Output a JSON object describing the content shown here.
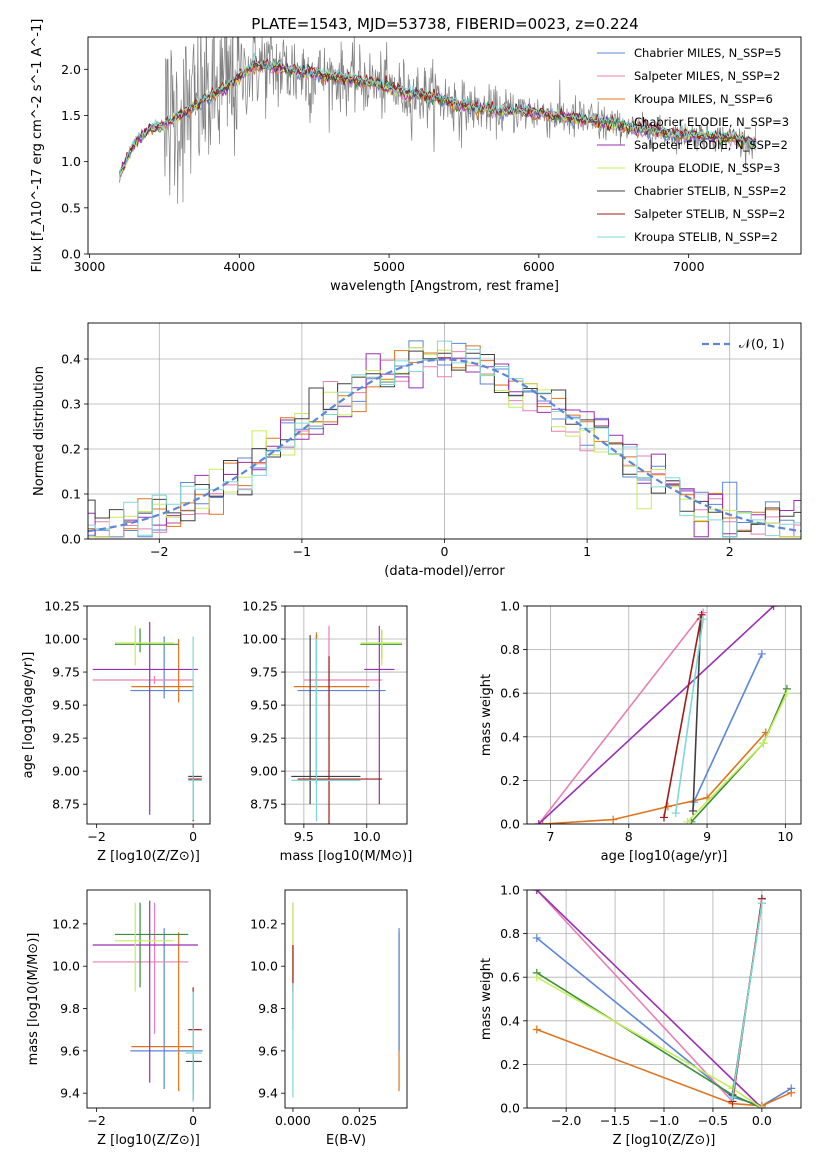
{
  "title": "PLATE=1543, MJD=53738, FIBERID=0023, z=0.224",
  "colors": {
    "c1": "#5b86d9",
    "c2": "#e97fb5",
    "c3": "#e0731e",
    "c4": "#3a8f3a",
    "c5": "#9b2fb3",
    "c6": "#c6ee5b",
    "c7": "#404040",
    "c8": "#a21b1b",
    "c9": "#7fd8d8",
    "data": "#808080"
  },
  "chart_data": [
    {
      "id": "spectrum",
      "type": "line",
      "xlabel": "wavelength [Angstrom, rest frame]",
      "ylabel": "Flux [f_λ10^-17 erg cm^-2 s^-1 A^-1]",
      "xlim": [
        2990,
        7750
      ],
      "ylim": [
        0,
        2.35
      ],
      "xticks": [
        3000,
        4000,
        5000,
        6000,
        7000
      ],
      "yticks": [
        0.0,
        0.5,
        1.0,
        1.5,
        2.0
      ],
      "grid": false,
      "legend_position": "top-right",
      "legend": [
        {
          "label": "Chabrier MILES, N_SSP=5",
          "color_key": "c1"
        },
        {
          "label": "Salpeter MILES, N_SSP=2",
          "color_key": "c2"
        },
        {
          "label": "Kroupa MILES, N_SSP=6",
          "color_key": "c3"
        },
        {
          "label": "Chabrier ELODIE, N_SSP=3",
          "color_key": "c4"
        },
        {
          "label": "Salpeter ELODIE, N_SSP=2",
          "color_key": "c5"
        },
        {
          "label": "Kroupa ELODIE, N_SSP=3",
          "color_key": "c6"
        },
        {
          "label": "Chabrier STELIB, N_SSP=2",
          "color_key": "c7"
        },
        {
          "label": "Salpeter STELIB, N_SSP=2",
          "color_key": "c8"
        },
        {
          "label": "Kroupa STELIB, N_SSP=2",
          "color_key": "c9"
        }
      ],
      "continuum": [
        [
          3200,
          0.85
        ],
        [
          3300,
          1.2
        ],
        [
          3400,
          1.35
        ],
        [
          3500,
          1.4
        ],
        [
          3650,
          1.55
        ],
        [
          3800,
          1.7
        ],
        [
          3950,
          1.85
        ],
        [
          4100,
          2.05
        ],
        [
          4300,
          2.0
        ],
        [
          4500,
          1.95
        ],
        [
          4700,
          1.9
        ],
        [
          4900,
          1.85
        ],
        [
          5100,
          1.75
        ],
        [
          5300,
          1.7
        ],
        [
          5500,
          1.6
        ],
        [
          5700,
          1.55
        ],
        [
          5900,
          1.55
        ],
        [
          6100,
          1.5
        ],
        [
          6300,
          1.45
        ],
        [
          6500,
          1.4
        ],
        [
          6700,
          1.35
        ],
        [
          6900,
          1.3
        ],
        [
          7100,
          1.28
        ],
        [
          7300,
          1.25
        ],
        [
          7450,
          1.2
        ]
      ]
    },
    {
      "id": "residuals",
      "type": "line",
      "xlabel": "(data-model)/error",
      "ylabel": "Normed distribution",
      "xlim": [
        -2.5,
        2.5
      ],
      "ylim": [
        0,
        0.48
      ],
      "xticks": [
        -2,
        -1,
        0,
        1,
        2
      ],
      "yticks": [
        0.0,
        0.1,
        0.2,
        0.3,
        0.4
      ],
      "grid": true,
      "legend_position": "top-right",
      "legend": [
        {
          "label": "𝒩(0, 1)",
          "color_key": "c1"
        }
      ],
      "gaussian": {
        "mean": 0,
        "sigma": 1
      }
    },
    {
      "id": "age-vs-Z",
      "type": "scatter",
      "xlabel": "Z [log10(Z/Z⊙)]",
      "ylabel": "age  [log10(age/yr)]",
      "xlim": [
        -2.2,
        0.35
      ],
      "ylim": [
        8.6,
        10.25
      ],
      "xticks": [
        -2,
        0
      ],
      "yticks": [
        8.75,
        9.0,
        9.25,
        9.5,
        9.75,
        10.0,
        10.25
      ],
      "grid": false,
      "points": [
        {
          "c": "c1",
          "x": -0.6,
          "y": 9.61,
          "xl": -1.3,
          "xr": 0.0,
          "yl": 9.55,
          "yh": 10.02
        },
        {
          "c": "c2",
          "x": -0.8,
          "y": 9.69,
          "xl": -2.08,
          "xr": 0.0,
          "yl": 9.66,
          "yh": 9.72
        },
        {
          "c": "c3",
          "x": -0.3,
          "y": 9.64,
          "xl": -1.28,
          "xr": 0.02,
          "yl": 9.52,
          "yh": 10.0
        },
        {
          "c": "c4",
          "x": -1.1,
          "y": 9.96,
          "xl": -1.62,
          "xr": -0.3,
          "yl": 9.9,
          "yh": 10.08
        },
        {
          "c": "c5",
          "x": -0.9,
          "y": 9.77,
          "xl": -2.08,
          "xr": 0.1,
          "yl": 8.67,
          "yh": 10.13
        },
        {
          "c": "c6",
          "x": -1.2,
          "y": 9.97,
          "xl": -1.62,
          "xr": -0.4,
          "yl": 9.8,
          "yh": 10.1
        },
        {
          "c": "c7",
          "x": 0.0,
          "y": 8.96,
          "xl": -0.1,
          "xr": 0.18,
          "yl": 8.92,
          "yh": 9.0
        },
        {
          "c": "c8",
          "x": 0.0,
          "y": 8.94,
          "xl": -0.1,
          "xr": 0.18,
          "yl": 8.62,
          "yh": 8.96
        },
        {
          "c": "c9",
          "x": 0.0,
          "y": 8.93,
          "xl": -0.1,
          "xr": 0.18,
          "yl": 8.63,
          "yh": 10.02
        }
      ]
    },
    {
      "id": "age-vs-mass",
      "type": "scatter",
      "xlabel": "mass [log10(M/M⊙)]",
      "ylabel": "",
      "xlim": [
        9.35,
        10.32
      ],
      "ylim": [
        8.6,
        10.25
      ],
      "xticks": [
        9.5,
        10.0
      ],
      "yticks": [
        8.75,
        9.0,
        9.25,
        9.5,
        9.75,
        10.0,
        10.25
      ],
      "grid": true,
      "points": [
        {
          "c": "c1",
          "x": 9.6,
          "y": 9.61,
          "xl": 9.45,
          "xr": 10.15,
          "yl": 8.9,
          "yh": 10.03
        },
        {
          "c": "c2",
          "x": 9.7,
          "y": 9.69,
          "xl": 9.5,
          "xr": 10.12,
          "yl": 9.5,
          "yh": 10.1
        },
        {
          "c": "c3",
          "x": 9.6,
          "y": 9.64,
          "xl": 9.42,
          "xr": 10.02,
          "yl": 8.9,
          "yh": 10.05
        },
        {
          "c": "c4",
          "x": 10.12,
          "y": 9.96,
          "xl": 9.95,
          "xr": 10.28,
          "yl": 9.85,
          "yh": 10.07
        },
        {
          "c": "c5",
          "x": 10.1,
          "y": 9.77,
          "xl": 9.98,
          "xr": 10.22,
          "yl": 8.75,
          "yh": 10.1
        },
        {
          "c": "c6",
          "x": 10.12,
          "y": 9.97,
          "xl": 9.95,
          "xr": 10.28,
          "yl": 9.8,
          "yh": 10.07
        },
        {
          "c": "c7",
          "x": 9.55,
          "y": 8.96,
          "xl": 9.4,
          "xr": 9.95,
          "yl": 8.75,
          "yh": 10.03
        },
        {
          "c": "c8",
          "x": 9.7,
          "y": 8.94,
          "xl": 9.45,
          "xr": 10.12,
          "yl": 8.6,
          "yh": 9.87
        },
        {
          "c": "c9",
          "x": 9.6,
          "y": 8.93,
          "xl": 9.4,
          "xr": 9.95,
          "yl": 8.62,
          "yh": 10.0
        }
      ]
    },
    {
      "id": "weight-vs-age",
      "type": "line",
      "xlabel": "age  [log10(age/yr)]",
      "ylabel": "mass weight",
      "xlim": [
        6.7,
        10.2
      ],
      "ylim": [
        0,
        1.0
      ],
      "xticks": [
        7,
        8,
        9,
        10
      ],
      "yticks": [
        0.0,
        0.2,
        0.4,
        0.6,
        0.8,
        1.0
      ],
      "grid": true,
      "series": [
        {
          "c": "c1",
          "x": [
            8.83,
            9.7
          ],
          "y": [
            0.1,
            0.78
          ]
        },
        {
          "c": "c2",
          "x": [
            6.85,
            8.95
          ],
          "y": [
            0.0,
            0.97
          ]
        },
        {
          "c": "c3",
          "x": [
            6.9,
            7.8,
            8.5,
            9.0,
            9.75
          ],
          "y": [
            0.0,
            0.02,
            0.08,
            0.12,
            0.42
          ]
        },
        {
          "c": "c4",
          "x": [
            8.8,
            9.72,
            10.02
          ],
          "y": [
            0.01,
            0.37,
            0.62
          ]
        },
        {
          "c": "c5",
          "x": [
            6.85,
            9.85
          ],
          "y": [
            0.0,
            1.0
          ]
        },
        {
          "c": "c6",
          "x": [
            8.75,
            9.72,
            10.02
          ],
          "y": [
            0.01,
            0.37,
            0.6
          ]
        },
        {
          "c": "c7",
          "x": [
            8.82,
            8.92
          ],
          "y": [
            0.06,
            0.94
          ]
        },
        {
          "c": "c8",
          "x": [
            8.45,
            8.93
          ],
          "y": [
            0.03,
            0.96
          ]
        },
        {
          "c": "c9",
          "x": [
            8.6,
            8.95
          ],
          "y": [
            0.05,
            0.94
          ]
        }
      ]
    },
    {
      "id": "mass-vs-Z",
      "type": "scatter",
      "xlabel": "Z [log10(Z/Z⊙)]",
      "ylabel": "mass [log10(M/M⊙)]",
      "xlim": [
        -2.2,
        0.35
      ],
      "ylim": [
        9.33,
        10.36
      ],
      "xticks": [
        -2,
        0
      ],
      "yticks": [
        9.4,
        9.6,
        9.8,
        10.0,
        10.2
      ],
      "grid": false,
      "points": [
        {
          "c": "c1",
          "x": -0.6,
          "y": 9.6,
          "xl": -1.3,
          "xr": 0.2,
          "yl": 9.42,
          "yh": 10.18
        },
        {
          "c": "c2",
          "x": -0.8,
          "y": 10.02,
          "xl": -2.08,
          "xr": -0.1,
          "yl": 9.68,
          "yh": 10.3
        },
        {
          "c": "c3",
          "x": -0.3,
          "y": 9.62,
          "xl": -1.28,
          "xr": 0.02,
          "yl": 9.41,
          "yh": 10.16
        },
        {
          "c": "c4",
          "x": -1.1,
          "y": 10.15,
          "xl": -1.62,
          "xr": -0.1,
          "yl": 9.9,
          "yh": 10.3
        },
        {
          "c": "c5",
          "x": -0.9,
          "y": 10.1,
          "xl": -2.08,
          "xr": 0.1,
          "yl": 9.45,
          "yh": 10.31
        },
        {
          "c": "c6",
          "x": -1.2,
          "y": 10.12,
          "xl": -1.62,
          "xr": -0.4,
          "yl": 9.88,
          "yh": 10.3
        },
        {
          "c": "c7",
          "x": 0.0,
          "y": 9.55,
          "xl": -0.15,
          "xr": 0.18,
          "yl": 9.4,
          "yh": 9.58
        },
        {
          "c": "c8",
          "x": 0.0,
          "y": 9.7,
          "xl": -0.1,
          "xr": 0.18,
          "yl": 9.37,
          "yh": 9.9
        },
        {
          "c": "c9",
          "x": 0.0,
          "y": 9.59,
          "xl": -0.15,
          "xr": 0.18,
          "yl": 9.36,
          "yh": 9.88
        }
      ]
    },
    {
      "id": "mass-vs-ebv",
      "type": "scatter",
      "xlabel": "E(B-V)",
      "ylabel": "",
      "xlim": [
        -0.003,
        0.043
      ],
      "ylim": [
        9.33,
        10.36
      ],
      "xticks": [
        0.0,
        0.025
      ],
      "yticks": [
        9.4,
        9.6,
        9.8,
        10.0,
        10.2
      ],
      "grid": false,
      "points": [
        {
          "c": "c2",
          "x": 0.0,
          "y": 10.0,
          "xl": 0.0,
          "xr": 0.0,
          "yl": 9.7,
          "yh": 10.3
        },
        {
          "c": "c6",
          "x": 0.0,
          "y": 10.1,
          "xl": 0.0,
          "xr": 0.0,
          "yl": 9.9,
          "yh": 10.3
        },
        {
          "c": "c8",
          "x": 0.0,
          "y": 9.7,
          "xl": 0.0,
          "xr": 0.0,
          "yl": 9.88,
          "yh": 10.1
        },
        {
          "c": "c9",
          "x": 0.0,
          "y": 9.6,
          "xl": 0.0,
          "xr": 0.0,
          "yl": 9.38,
          "yh": 9.92
        },
        {
          "c": "c3",
          "x": 0.04,
          "y": 9.6,
          "xl": 0.04,
          "xr": 0.04,
          "yl": 9.41,
          "yh": 10.16
        },
        {
          "c": "c1",
          "x": 0.04,
          "y": 9.8,
          "xl": 0.04,
          "xr": 0.04,
          "yl": 9.6,
          "yh": 10.18
        }
      ]
    },
    {
      "id": "weight-vs-Z",
      "type": "line",
      "xlabel": "Z [log10(Z/Z⊙)]",
      "ylabel": "mass weight",
      "xlim": [
        -2.4,
        0.4
      ],
      "ylim": [
        0,
        1.0
      ],
      "xticks": [
        -2.0,
        -1.5,
        -1.0,
        -0.5,
        0.0
      ],
      "yticks": [
        0.0,
        0.2,
        0.4,
        0.6,
        0.8,
        1.0
      ],
      "grid": true,
      "series": [
        {
          "c": "c1",
          "x": [
            -2.3,
            -0.3,
            0.0,
            0.3
          ],
          "y": [
            0.78,
            0.05,
            0.01,
            0.09
          ]
        },
        {
          "c": "c2",
          "x": [
            -2.3,
            -0.3,
            0.0
          ],
          "y": [
            1.0,
            0.03,
            0.96
          ]
        },
        {
          "c": "c3",
          "x": [
            -2.3,
            -0.3,
            0.0,
            0.3
          ],
          "y": [
            0.36,
            0.02,
            0.01,
            0.07
          ]
        },
        {
          "c": "c4",
          "x": [
            -2.3,
            -0.3,
            0.0
          ],
          "y": [
            0.62,
            0.06,
            0.0
          ]
        },
        {
          "c": "c5",
          "x": [
            -2.3,
            0.0
          ],
          "y": [
            1.0,
            0.0
          ]
        },
        {
          "c": "c6",
          "x": [
            -2.3,
            -0.3,
            0.0
          ],
          "y": [
            0.6,
            0.09,
            0.0
          ]
        },
        {
          "c": "c7",
          "x": [
            -0.3,
            0.0
          ],
          "y": [
            0.06,
            0.94
          ]
        },
        {
          "c": "c8",
          "x": [
            -0.3,
            0.0
          ],
          "y": [
            0.03,
            0.96
          ]
        },
        {
          "c": "c9",
          "x": [
            -0.3,
            0.0
          ],
          "y": [
            0.05,
            0.94
          ]
        }
      ]
    }
  ]
}
